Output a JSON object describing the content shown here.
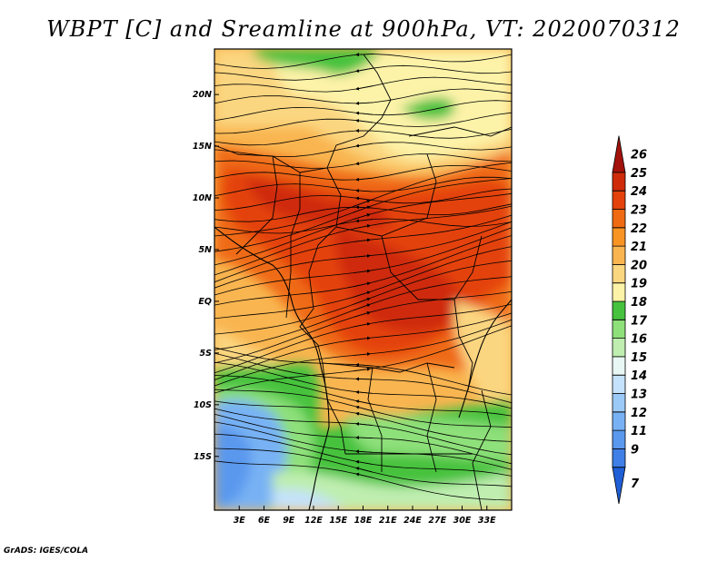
{
  "title": "WBPT [C] and Sreamline at 900hPa, VT: 2020070312",
  "footer": "GrADS: IGES/COLA",
  "map": {
    "lon_range": [
      0,
      36
    ],
    "lat_range": [
      -20.2,
      24.4
    ],
    "lon_ticks": [
      {
        "value": 3,
        "label": "3E"
      },
      {
        "value": 6,
        "label": "6E"
      },
      {
        "value": 9,
        "label": "9E"
      },
      {
        "value": 12,
        "label": "12E"
      },
      {
        "value": 15,
        "label": "15E"
      },
      {
        "value": 18,
        "label": "18E"
      },
      {
        "value": 21,
        "label": "21E"
      },
      {
        "value": 24,
        "label": "24E"
      },
      {
        "value": 27,
        "label": "27E"
      },
      {
        "value": 30,
        "label": "30E"
      },
      {
        "value": 33,
        "label": "33E"
      }
    ],
    "lat_ticks": [
      {
        "value": 20,
        "label": "20N"
      },
      {
        "value": 15,
        "label": "15N"
      },
      {
        "value": 10,
        "label": "10N"
      },
      {
        "value": 5,
        "label": "5N"
      },
      {
        "value": 0,
        "label": "EQ"
      },
      {
        "value": -5,
        "label": "5S"
      },
      {
        "value": -10,
        "label": "10S"
      },
      {
        "value": -15,
        "label": "15S"
      }
    ]
  },
  "colorbar": {
    "levels": [
      {
        "label": "7",
        "color": "#1f5fd6"
      },
      {
        "label": "9",
        "color": "#3f7fe6"
      },
      {
        "label": "11",
        "color": "#5a98ee"
      },
      {
        "label": "12",
        "color": "#78b2f4"
      },
      {
        "label": "13",
        "color": "#9ccaf8"
      },
      {
        "label": "14",
        "color": "#c4e2fb"
      },
      {
        "label": "15",
        "color": "#e8f7f4"
      },
      {
        "label": "16",
        "color": "#bfeeb0"
      },
      {
        "label": "17",
        "color": "#8ee07a"
      },
      {
        "label": "18",
        "color": "#46c23e"
      },
      {
        "label": "19",
        "color": "#fdf3a8"
      },
      {
        "label": "20",
        "color": "#fbd680"
      },
      {
        "label": "21",
        "color": "#f9b550"
      },
      {
        "label": "22",
        "color": "#f79424"
      },
      {
        "label": "23",
        "color": "#ef6a12"
      },
      {
        "label": "24",
        "color": "#e4420c"
      },
      {
        "label": "25",
        "color": "#cf2a0a"
      },
      {
        "label": "26",
        "color": "#a3120a"
      }
    ]
  }
}
